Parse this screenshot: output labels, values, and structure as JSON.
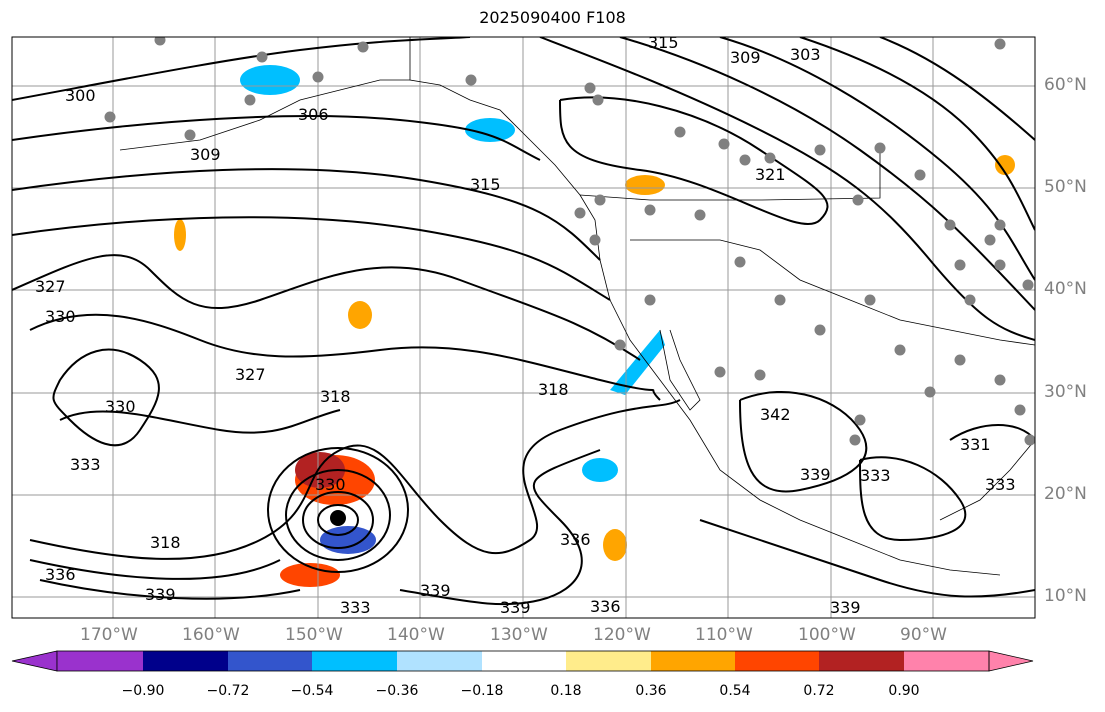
{
  "title": "2025090400 F108",
  "lat_labels": [
    "60°N",
    "50°N",
    "40°N",
    "30°N",
    "20°N",
    "10°N"
  ],
  "lon_labels": [
    "170°W",
    "160°W",
    "150°W",
    "140°W",
    "130°W",
    "120°W",
    "110°W",
    "100°W",
    "90°W"
  ],
  "contour_labels": [
    "300",
    "303",
    "309",
    "315",
    "306",
    "321",
    "327",
    "330",
    "318",
    "333",
    "336",
    "339",
    "342",
    "331"
  ],
  "colorbar": {
    "tick_labels": [
      "−0.90",
      "−0.72",
      "−0.54",
      "−0.36",
      "−0.18",
      "0.18",
      "0.36",
      "0.54",
      "0.72",
      "0.90"
    ],
    "colors": [
      "#9a32cd",
      "#00008b",
      "#3355cc",
      "#00bfff",
      "#b0e2ff",
      "#ffffff",
      "#ffec8b",
      "#ffa500",
      "#ff4500",
      "#b22222",
      "#ff82ab"
    ]
  },
  "colors": {
    "contour": "#000000",
    "grid": "#999999",
    "station": "#808080"
  }
}
